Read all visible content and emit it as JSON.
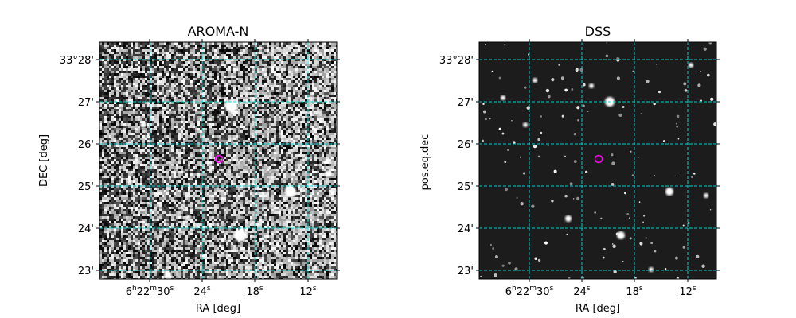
{
  "panels": [
    {
      "title": "AROMA-N",
      "xlabel": "RA [deg]",
      "ylabel": "DEC [deg]",
      "image_style": "noisy",
      "grid_color": "#00d6d6",
      "marker_color": "#ff00ff",
      "ra_ticks": [
        {
          "h": "6",
          "m": "22",
          "s": "30",
          "label_main": "6",
          "kind": "hms"
        },
        {
          "s": "24",
          "kind": "s"
        },
        {
          "s": "18",
          "kind": "s"
        },
        {
          "s": "12",
          "kind": "s"
        }
      ],
      "dec_ticks": [
        "33°28'",
        "27'",
        "26'",
        "25'",
        "24'",
        "23'"
      ]
    },
    {
      "title": "DSS",
      "xlabel": "RA [deg]",
      "ylabel": "pos.eq.dec",
      "image_style": "stars",
      "grid_color": "#00d6d6",
      "marker_color": "#ff00ff",
      "ra_ticks": [
        {
          "h": "6",
          "m": "22",
          "s": "30",
          "kind": "hms"
        },
        {
          "s": "24",
          "kind": "s"
        },
        {
          "s": "18",
          "kind": "s"
        },
        {
          "s": "12",
          "kind": "s"
        }
      ],
      "dec_ticks": [
        "33°28'",
        "27'",
        "26'",
        "25'",
        "24'",
        "23'"
      ]
    }
  ],
  "units": {
    "h": "h",
    "m": "m",
    "s": "s"
  }
}
